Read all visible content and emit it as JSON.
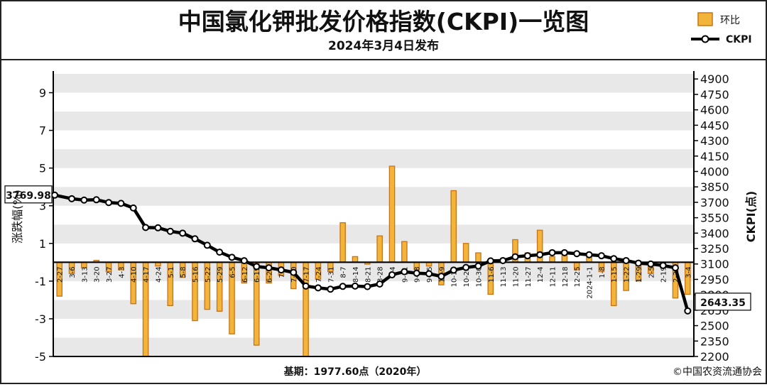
{
  "header": {
    "title": "中国氯化钾批发价格指数(CKPI)一览图",
    "subtitle": "2024年3月4日发布"
  },
  "footer": {
    "base_period": "基期：1977.60点（2020年）",
    "copyright": "©中国农资流通协会"
  },
  "colors": {
    "bar_fill": "#f2b53a",
    "bar_edge": "#c8731a",
    "line": "#000000",
    "band_a": "#ffffff",
    "band_b": "#e8e8e8"
  },
  "chart_data": {
    "type": "bar+line",
    "title": "中国氯化钾批发价格指数(CKPI)一览图",
    "subtitle": "2024年3月4日发布",
    "ylabel": "涨跌幅(%)",
    "y2label": "CKPI(点)",
    "ylim": [
      -5,
      10
    ],
    "y2lim": [
      2200,
      4950
    ],
    "yticks": [
      9,
      7,
      5,
      3,
      1,
      -1,
      -3,
      -5
    ],
    "y2ticks": [
      4900,
      4750,
      4600,
      4450,
      4300,
      4150,
      4000,
      3850,
      3700,
      3550,
      3400,
      3250,
      3100,
      2950,
      2800,
      2650,
      2500,
      2350,
      2200
    ],
    "grid": "horizontal bands",
    "legend": "top-right",
    "categories": [
      "2-27",
      "3-6",
      "3-13",
      "3-20",
      "3-27",
      "4-3",
      "4-10",
      "4-17",
      "4-24",
      "5-1",
      "5-8",
      "5-16",
      "5-22",
      "5-29",
      "6-5",
      "6-12",
      "6-19",
      "6-26",
      "7-3",
      "7-10",
      "7-17",
      "7-24",
      "7-31",
      "8-7",
      "8-14",
      "8-21",
      "8-28",
      "9-4",
      "9-11",
      "9-18",
      "9-25",
      "10-9",
      "10-16",
      "10-23",
      "10-30",
      "11-6",
      "11-13",
      "11-20",
      "11-27",
      "12-4",
      "12-11",
      "12-18",
      "12-25",
      "2024-1-1",
      "1-8",
      "1-15",
      "1-22",
      "1-29",
      "2-5",
      "2-19",
      "2-26",
      "3-4"
    ],
    "series": [
      {
        "name": "环比",
        "type": "bar",
        "axis": "left",
        "values": [
          -1.8,
          -0.6,
          -0.3,
          0.1,
          -0.5,
          -0.4,
          -2.2,
          -5.0,
          -0.2,
          -2.3,
          -0.8,
          -3.1,
          -2.5,
          -2.6,
          -3.8,
          -1.1,
          -4.4,
          -1.1,
          -0.7,
          -1.4,
          -5.0,
          -0.9,
          -0.5,
          2.1,
          0.3,
          -0.1,
          1.4,
          5.1,
          1.1,
          -0.4,
          -0.2,
          -1.2,
          3.8,
          1.0,
          0.5,
          -1.7,
          0.1,
          1.2,
          0.5,
          1.7,
          0.3,
          0.4,
          -0.4,
          0.3,
          -0.5,
          -2.3,
          -1.5,
          -1.0,
          -0.6,
          -0.3,
          -1.9,
          -1.7
        ]
      },
      {
        "name": "CKPI",
        "type": "line",
        "axis": "right",
        "values": [
          3769.98,
          3735,
          3722,
          3725,
          3698,
          3690,
          3645,
          3455,
          3452,
          3418,
          3400,
          3345,
          3282,
          3215,
          3165,
          3132,
          3075,
          3063,
          3042,
          3018,
          2885,
          2868,
          2855,
          2882,
          2885,
          2880,
          2905,
          2995,
          3025,
          3010,
          3005,
          2980,
          3040,
          3066,
          3080,
          3130,
          3133,
          3170,
          3180,
          3190,
          3210,
          3210,
          3200,
          3190,
          3180,
          3152,
          3133,
          3108,
          3100,
          3085,
          3063,
          2643.35
        ],
        "start_label": "3769.98",
        "end_label": "2643.35"
      }
    ]
  }
}
